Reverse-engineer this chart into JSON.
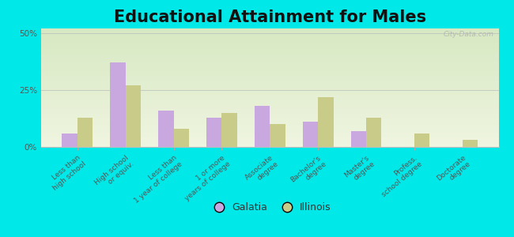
{
  "title": "Educational Attainment for Males",
  "categories": [
    "Less than\nhigh school",
    "High school\nor equiv.",
    "Less than\n1 year of college",
    "1 or more\nyears of college",
    "Associate\ndegree",
    "Bachelor's\ndegree",
    "Master's\ndegree",
    "Profess.\nschool degree",
    "Doctorate\ndegree"
  ],
  "galatia_values": [
    6,
    37,
    16,
    13,
    18,
    11,
    7,
    0,
    0
  ],
  "illinois_values": [
    13,
    27,
    8,
    15,
    10,
    22,
    13,
    6,
    3
  ],
  "galatia_color": "#c9a8e0",
  "illinois_color": "#c8cc88",
  "background_top": "#d4e8c2",
  "background_bottom": "#f0f5e0",
  "outer_background": "#00e8e8",
  "yticks": [
    0,
    25,
    50
  ],
  "ylim": [
    0,
    52
  ],
  "title_fontsize": 15,
  "tick_fontsize": 6.5,
  "legend_fontsize": 9,
  "bar_width": 0.32,
  "watermark": "City-Data.com"
}
